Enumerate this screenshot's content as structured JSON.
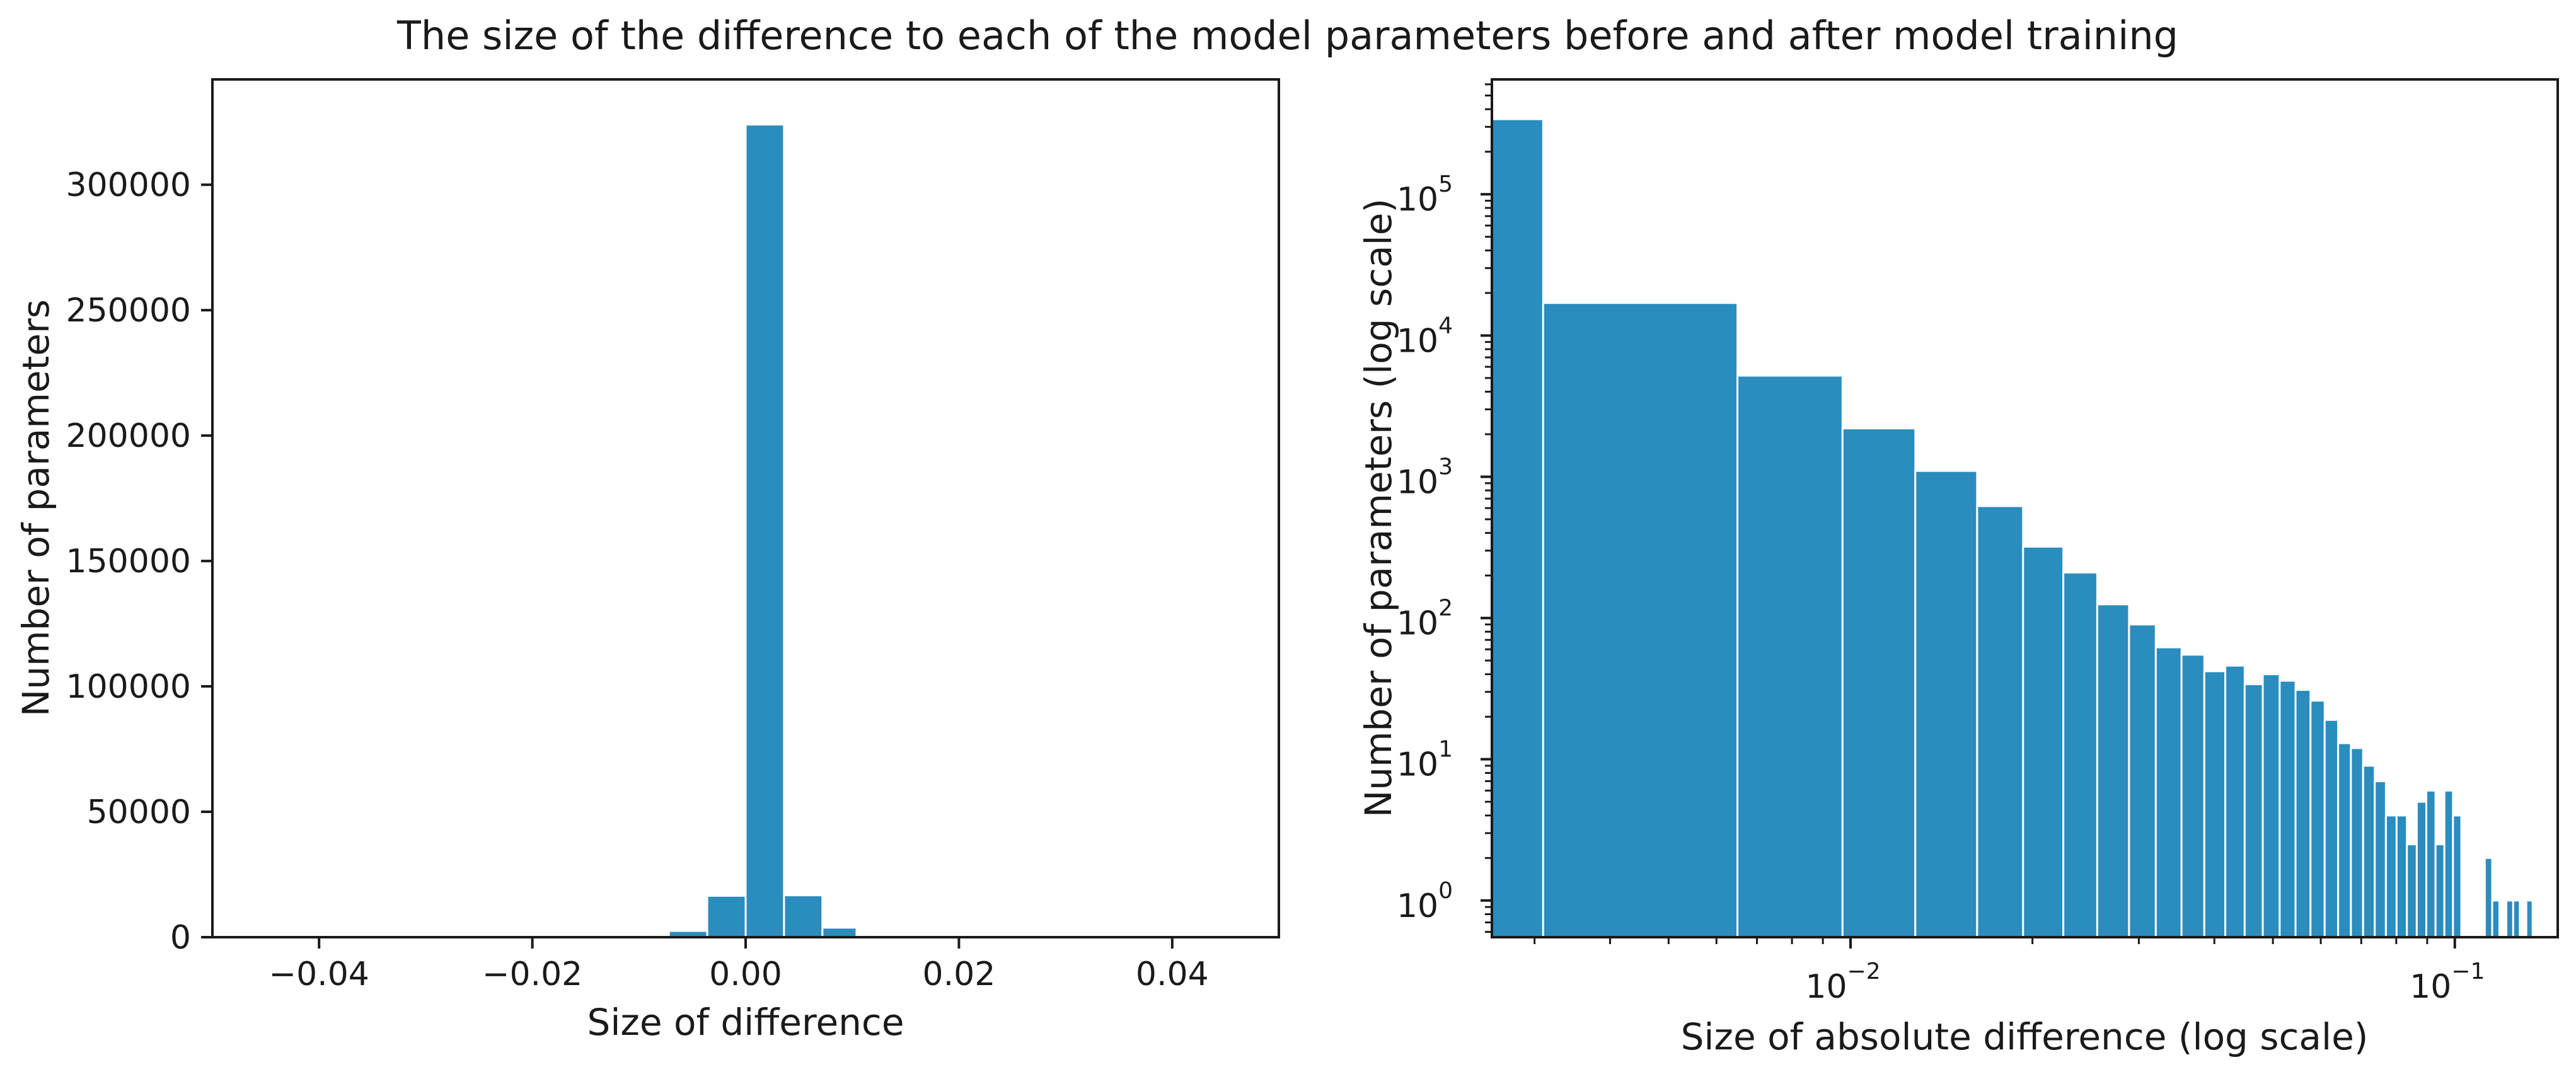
{
  "figure": {
    "title": "The size of the difference to each of the model parameters before and after model training"
  },
  "colors": {
    "bar": "#2b8cbe",
    "bar_edge": "#ffffff",
    "axis": "#1a1a1a"
  },
  "chart_data": [
    {
      "type": "bar",
      "xlabel": "Size of difference",
      "ylabel": "Number of parameters",
      "xlim": [
        -0.05,
        0.05
      ],
      "ylim": [
        0,
        342000
      ],
      "xticks": [
        -0.04,
        -0.02,
        0.0,
        0.02,
        0.04
      ],
      "xtick_labels": [
        "−0.04",
        "−0.02",
        "0.00",
        "0.02",
        "0.04"
      ],
      "yticks": [
        0,
        50000,
        100000,
        150000,
        200000,
        250000,
        300000
      ],
      "ytick_labels": [
        "0",
        "50000",
        "100000",
        "150000",
        "200000",
        "250000",
        "300000"
      ],
      "grid": false,
      "bin_edges": [
        -0.0104,
        -0.0072,
        -0.0036,
        0.0,
        0.0036,
        0.0072,
        0.0104,
        0.0136
      ],
      "values": [
        300,
        2500,
        16500,
        324000,
        16700,
        3800,
        800
      ]
    },
    {
      "type": "bar",
      "xlabel": "Size of absolute difference (log scale)",
      "ylabel": "Number of parameters (log scale)",
      "xscale": "log",
      "yscale": "log",
      "xlim": [
        0.00255,
        0.148
      ],
      "ylim": [
        0.55,
        650000
      ],
      "xticks": [
        0.01,
        0.1
      ],
      "xtick_labels": [
        {
          "base": "10",
          "exp": "−2"
        },
        {
          "base": "10",
          "exp": "−1"
        }
      ],
      "yticks": [
        1,
        10,
        100,
        1000,
        10000,
        100000
      ],
      "ytick_labels": [
        {
          "base": "10",
          "exp": "0"
        },
        {
          "base": "10",
          "exp": "1"
        },
        {
          "base": "10",
          "exp": "2"
        },
        {
          "base": "10",
          "exp": "3"
        },
        {
          "base": "10",
          "exp": "4"
        },
        {
          "base": "10",
          "exp": "5"
        }
      ],
      "grid": false,
      "bin_edges": [
        0.00255,
        0.0031,
        0.0065,
        0.0097,
        0.0128,
        0.0162,
        0.0193,
        0.0225,
        0.0256,
        0.0289,
        0.032,
        0.0353,
        0.0385,
        0.0417,
        0.0449,
        0.0481,
        0.0513,
        0.0545,
        0.0577,
        0.0609,
        0.0641,
        0.0673,
        0.0705,
        0.0737,
        0.0769,
        0.0801,
        0.0833,
        0.0865,
        0.0897,
        0.0929,
        0.0961,
        0.0993,
        0.1025,
        0.1057,
        0.1089,
        0.1121,
        0.1153,
        0.1185,
        0.1217,
        0.1249,
        0.1281,
        0.1313,
        0.1345,
        0.1377
      ],
      "values": [
        340000,
        17000,
        5200,
        2200,
        1100,
        620,
        320,
        210,
        125,
        90,
        62,
        55,
        42,
        46,
        34,
        40,
        36,
        31,
        26,
        19,
        13,
        12,
        9,
        7,
        4,
        4,
        2.5,
        5,
        6,
        2.5,
        6,
        4,
        0,
        0,
        0,
        2,
        1,
        0,
        1,
        1,
        0,
        1,
        0
      ]
    }
  ]
}
